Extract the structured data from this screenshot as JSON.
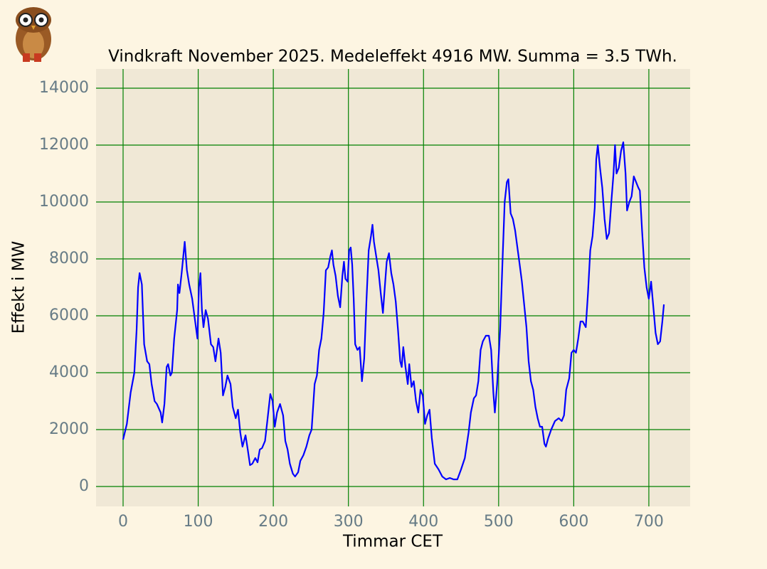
{
  "chart_data": {
    "type": "line",
    "title": "Vindkraft November 2025. Medeleffekt 4916 MW. Summa = 3.5 TWh.",
    "xlabel": "Timmar CET",
    "ylabel": "Effekt i MW",
    "xlim": [
      -36,
      755
    ],
    "ylim": [
      -700,
      14675
    ],
    "xticks": [
      0,
      100,
      200,
      300,
      400,
      500,
      600,
      700
    ],
    "yticks": [
      0,
      2000,
      4000,
      6000,
      8000,
      10000,
      12000,
      14000
    ],
    "grid": true,
    "grid_color": "#008000",
    "plot_background": "#f0e8d6",
    "x": [
      0,
      5,
      10,
      15,
      18,
      20,
      22,
      25,
      28,
      32,
      35,
      38,
      42,
      45,
      50,
      52,
      55,
      58,
      60,
      63,
      65,
      68,
      72,
      73,
      75,
      78,
      82,
      85,
      88,
      92,
      96,
      99,
      101,
      103,
      105,
      107,
      110,
      113,
      117,
      120,
      123,
      127,
      130,
      133,
      136,
      139,
      143,
      146,
      150,
      153,
      156,
      159,
      163,
      166,
      169,
      172,
      176,
      179,
      182,
      185,
      189,
      192,
      196,
      199,
      202,
      205,
      209,
      213,
      216,
      219,
      222,
      226,
      229,
      233,
      236,
      240,
      244,
      248,
      251,
      255,
      258,
      261,
      264,
      267,
      270,
      273,
      276,
      278,
      280,
      283,
      286,
      289,
      292,
      294,
      296,
      299,
      301,
      303,
      305,
      307,
      309,
      312,
      315,
      318,
      321,
      324,
      327,
      330,
      332,
      334,
      337,
      340,
      343,
      346,
      349,
      351,
      354,
      357,
      360,
      363,
      366,
      369,
      371,
      373,
      376,
      379,
      381,
      384,
      387,
      390,
      393,
      396,
      399,
      402,
      405,
      408,
      411,
      415,
      420,
      425,
      430,
      435,
      440,
      445,
      450,
      455,
      460,
      463,
      467,
      470,
      473,
      476,
      479,
      483,
      487,
      490,
      493,
      495,
      498,
      502,
      505,
      508,
      511,
      513,
      516,
      519,
      522,
      525,
      528,
      531,
      534,
      537,
      540,
      543,
      546,
      549,
      552,
      555,
      558,
      561,
      563,
      566,
      570,
      575,
      580,
      584,
      587,
      590,
      594,
      597,
      600,
      603,
      606,
      609,
      612,
      616,
      619,
      622,
      625,
      628,
      630,
      632,
      635,
      638,
      641,
      644,
      647,
      650,
      653,
      655,
      657,
      660,
      663,
      666,
      669,
      671,
      674,
      677,
      680,
      683,
      686,
      688,
      691,
      694,
      697,
      700,
      703,
      706,
      709,
      712,
      715,
      718,
      720
    ],
    "series": [
      {
        "color": "#0000ff",
        "values": [
          1650,
          2200,
          3300,
          4000,
          5500,
          7000,
          7500,
          7100,
          5000,
          4400,
          4300,
          3600,
          3000,
          2900,
          2600,
          2250,
          2900,
          4200,
          4300,
          3900,
          4000,
          5200,
          6200,
          7100,
          6800,
          7500,
          8600,
          7600,
          7100,
          6600,
          5800,
          5200,
          7000,
          7500,
          6200,
          5600,
          6200,
          5900,
          5000,
          4900,
          4400,
          5200,
          4700,
          3200,
          3500,
          3900,
          3600,
          2800,
          2400,
          2700,
          1900,
          1400,
          1800,
          1300,
          750,
          800,
          1000,
          850,
          1300,
          1350,
          1600,
          2300,
          3250,
          3000,
          2100,
          2600,
          2900,
          2500,
          1600,
          1300,
          800,
          450,
          350,
          500,
          900,
          1100,
          1400,
          1800,
          2000,
          3600,
          3900,
          4800,
          5200,
          6100,
          7600,
          7700,
          8100,
          8300,
          7800,
          7400,
          6700,
          6300,
          7400,
          7900,
          7300,
          7200,
          8300,
          8400,
          7800,
          6600,
          5000,
          4800,
          4900,
          3700,
          4500,
          6500,
          8300,
          8800,
          9200,
          8600,
          8100,
          7600,
          6800,
          6100,
          7200,
          7900,
          8200,
          7500,
          7100,
          6500,
          5500,
          4400,
          4200,
          4900,
          4200,
          3600,
          4300,
          3500,
          3700,
          3000,
          2600,
          3400,
          3200,
          2200,
          2500,
          2700,
          1700,
          800,
          600,
          350,
          250,
          300,
          250,
          250,
          600,
          1000,
          1900,
          2600,
          3100,
          3200,
          3700,
          4800,
          5100,
          5300,
          5300,
          4800,
          3300,
          2600,
          3600,
          5500,
          7800,
          10000,
          10700,
          10800,
          9600,
          9400,
          9000,
          8400,
          7800,
          7200,
          6400,
          5600,
          4400,
          3700,
          3400,
          2800,
          2400,
          2100,
          2100,
          1500,
          1400,
          1700,
          2000,
          2300,
          2400,
          2300,
          2500,
          3400,
          3800,
          4700,
          4800,
          4700,
          5200,
          5800,
          5800,
          5600,
          6800,
          8300,
          8800,
          9800,
          11500,
          12000,
          11200,
          10500,
          9400,
          8700,
          8900,
          10000,
          11000,
          12000,
          11000,
          11200,
          11800,
          12100,
          11000,
          9700,
          10000,
          10200,
          10900,
          10700,
          10500,
          10400,
          9000,
          7700,
          7000,
          6600,
          7200,
          6300,
          5400,
          5000,
          5100,
          5800,
          6400
        ]
      }
    ]
  }
}
